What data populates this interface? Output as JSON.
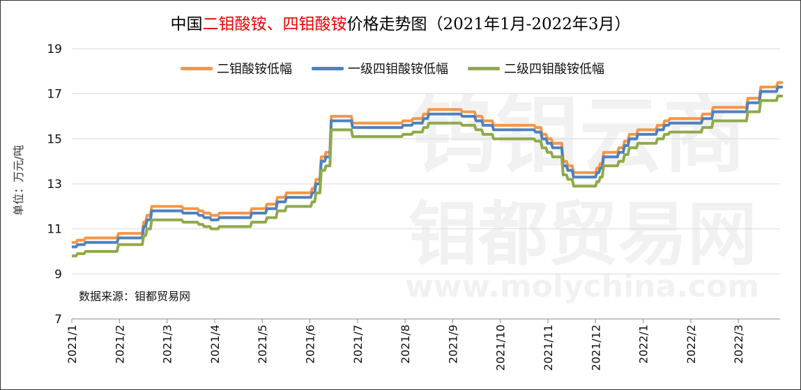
{
  "chart_data": {
    "type": "line",
    "title_parts": [
      "中国",
      "二钼酸铵、四钼酸铵",
      "价格走势图（2021年1月-2022年3月）"
    ],
    "ylabel": "单位：万元/吨",
    "ylim": [
      7,
      19
    ],
    "yticks": [
      7,
      9,
      11,
      13,
      15,
      17,
      19
    ],
    "xlabels": [
      "2021/1",
      "2021/2",
      "2021/3",
      "2021/4",
      "2021/5",
      "2021/6",
      "2021/7",
      "2021/8",
      "2021/9",
      "2021/10",
      "2021/11",
      "2021/12",
      "2022/1",
      "2022/2",
      "2022/3"
    ],
    "x_unit": "months since 2021/1 (step points)",
    "x": [
      0,
      0.09,
      0.26,
      0.95,
      1.48,
      1.55,
      1.65,
      2.31,
      2.64,
      2.75,
      2.9,
      3.07,
      3.75,
      4.07,
      4.29,
      4.48,
      5.02,
      5.1,
      5.21,
      5.31,
      5.42,
      5.87,
      6.93,
      7.14,
      7.36,
      7.47,
      8.17,
      8.46,
      8.61,
      8.83,
      9.71,
      9.85,
      9.96,
      10.07,
      10.29,
      10.39,
      10.51,
      11.0,
      11.07,
      11.14,
      11.46,
      11.58,
      11.68,
      11.86,
      12.27,
      12.42,
      12.53,
      13.22,
      13.44,
      14.17,
      14.44,
      14.8,
      14.88
    ],
    "series": [
      {
        "name": "二钼酸铵低幅",
        "color": "#f79646",
        "values": [
          10.4,
          10.5,
          10.6,
          10.8,
          11.3,
          11.6,
          12.0,
          11.9,
          11.8,
          11.7,
          11.6,
          11.7,
          11.9,
          12.1,
          12.4,
          12.6,
          12.8,
          13.2,
          14.2,
          14.4,
          16.0,
          15.7,
          15.8,
          15.9,
          16.1,
          16.3,
          16.2,
          16.0,
          15.8,
          15.6,
          15.5,
          15.2,
          15.0,
          14.8,
          14.0,
          13.8,
          13.5,
          13.7,
          13.9,
          14.4,
          14.6,
          14.9,
          15.2,
          15.4,
          15.6,
          15.8,
          15.9,
          16.1,
          16.4,
          16.8,
          17.3,
          17.5,
          17.5
        ]
      },
      {
        "name": "一级四钼酸铵低幅",
        "color": "#4f81bd",
        "values": [
          10.2,
          10.3,
          10.4,
          10.6,
          11.1,
          11.4,
          11.8,
          11.7,
          11.6,
          11.5,
          11.4,
          11.5,
          11.7,
          11.9,
          12.2,
          12.4,
          12.6,
          13.0,
          14.0,
          14.2,
          15.8,
          15.5,
          15.6,
          15.7,
          15.9,
          16.1,
          16.0,
          15.8,
          15.6,
          15.4,
          15.3,
          15.0,
          14.8,
          14.6,
          13.8,
          13.6,
          13.3,
          13.5,
          13.7,
          14.2,
          14.4,
          14.7,
          15.0,
          15.2,
          15.4,
          15.6,
          15.7,
          15.9,
          16.2,
          16.6,
          17.1,
          17.3,
          17.3
        ]
      },
      {
        "name": "二级四钼酸铵低幅",
        "color": "#8faa4a",
        "values": [
          9.8,
          9.9,
          10.0,
          10.3,
          10.7,
          11.0,
          11.4,
          11.3,
          11.2,
          11.1,
          11.0,
          11.1,
          11.3,
          11.5,
          11.8,
          12.0,
          12.2,
          12.6,
          13.6,
          13.8,
          15.4,
          15.1,
          15.2,
          15.3,
          15.5,
          15.7,
          15.6,
          15.4,
          15.2,
          15.0,
          14.9,
          14.6,
          14.4,
          14.2,
          13.4,
          13.2,
          12.9,
          13.1,
          13.3,
          13.8,
          14.0,
          14.3,
          14.6,
          14.8,
          15.0,
          15.2,
          15.3,
          15.5,
          15.8,
          16.2,
          16.7,
          16.9,
          16.9
        ]
      }
    ],
    "legend": "top",
    "grid": "horizontal",
    "source": "数据来源：钼都贸易网"
  },
  "watermark": {
    "line1": "钨钼云商",
    "line2": "钼都贸易网",
    "line3": "www.molychina.com"
  }
}
